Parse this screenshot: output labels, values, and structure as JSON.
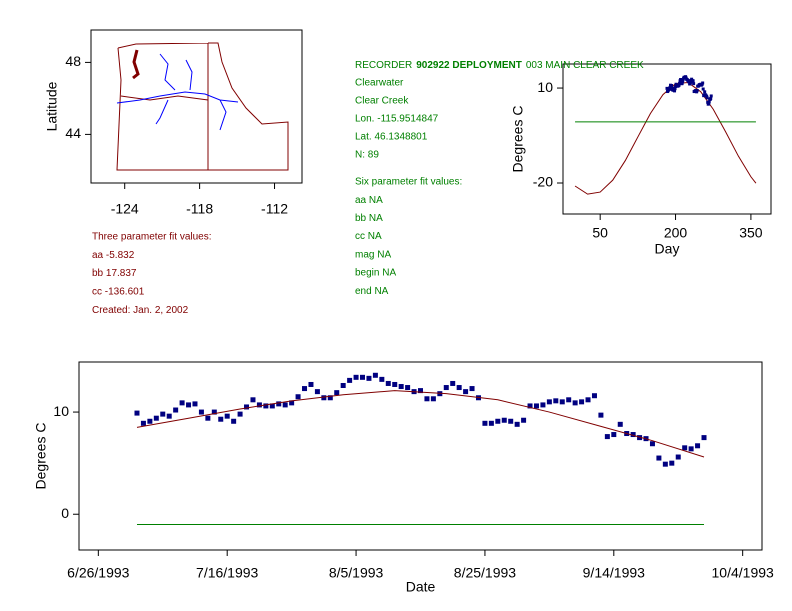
{
  "chart_data": [
    {
      "type": "map",
      "ylabel": "Latitude",
      "xlim": [
        -126.7,
        -109.8
      ],
      "ylim": [
        41.3,
        49.8
      ],
      "xticks": [
        -124,
        -118,
        -112
      ],
      "yticks": [
        44,
        48
      ]
    },
    {
      "type": "line",
      "xlabel": "Day",
      "ylabel": "Degrees C",
      "xlim": [
        -24,
        390
      ],
      "ylim": [
        -29.8,
        17.6
      ],
      "xticks": [
        50,
        200,
        350
      ],
      "yticks": [
        -20,
        10
      ],
      "series": [
        {
          "color": "#800000",
          "x": [
            0,
            25,
            50,
            75,
            100,
            125,
            150,
            175,
            200,
            225,
            250,
            275,
            300,
            325,
            350,
            360
          ],
          "values": [
            -20.95,
            -23.52,
            -22.87,
            -19.1,
            -12.92,
            -5.45,
            1.96,
            7.94,
            11.41,
            11.74,
            8.86,
            3.31,
            -3.92,
            -11.49,
            -18.03,
            -20.08
          ]
        },
        {
          "color": "#008000",
          "x": [
            0,
            360
          ],
          "values": [
            -0.7,
            -0.7
          ]
        }
      ]
    },
    {
      "type": "scatter",
      "xlabel": "Date",
      "ylabel": "Degrees C",
      "xlim": [
        "6/23/1993",
        "10/7/1993"
      ],
      "ylim": [
        -3.5,
        14.9
      ],
      "xticks": [
        "6/26/1993",
        "7/16/1993",
        "8/5/1993",
        "8/25/1993",
        "9/14/1993",
        "10/4/1993"
      ],
      "yticks": [
        0,
        10
      ],
      "series": [
        {
          "type": "scatter",
          "color": "#000080",
          "x": [
            "7/2/1993",
            "7/3/1993",
            "7/4/1993",
            "7/5/1993",
            "7/6/1993",
            "7/7/1993",
            "7/8/1993",
            "7/9/1993",
            "7/10/1993",
            "7/11/1993",
            "7/12/1993",
            "7/13/1993",
            "7/14/1993",
            "7/15/1993",
            "7/16/1993",
            "7/17/1993",
            "7/18/1993",
            "7/19/1993",
            "7/20/1993",
            "7/21/1993",
            "7/22/1993",
            "7/23/1993",
            "7/24/1993",
            "7/25/1993",
            "7/26/1993",
            "7/27/1993",
            "7/28/1993",
            "7/29/1993",
            "7/30/1993",
            "7/31/1993",
            "8/1/1993",
            "8/2/1993",
            "8/3/1993",
            "8/4/1993",
            "8/5/1993",
            "8/6/1993",
            "8/7/1993",
            "8/8/1993",
            "8/9/1993",
            "8/10/1993",
            "8/11/1993",
            "8/12/1993",
            "8/13/1993",
            "8/14/1993",
            "8/15/1993",
            "8/16/1993",
            "8/17/1993",
            "8/18/1993",
            "8/19/1993",
            "8/20/1993",
            "8/21/1993",
            "8/22/1993",
            "8/23/1993",
            "8/24/1993",
            "8/25/1993",
            "8/26/1993",
            "8/27/1993",
            "8/28/1993",
            "8/29/1993",
            "8/30/1993",
            "8/31/1993",
            "9/1/1993",
            "9/2/1993",
            "9/3/1993",
            "9/4/1993",
            "9/5/1993",
            "9/6/1993",
            "9/7/1993",
            "9/8/1993",
            "9/9/1993",
            "9/10/1993",
            "9/11/1993",
            "9/12/1993",
            "9/13/1993",
            "9/14/1993",
            "9/15/1993",
            "9/16/1993",
            "9/17/1993",
            "9/18/1993",
            "9/19/1993",
            "9/20/1993",
            "9/21/1993",
            "9/22/1993",
            "9/23/1993",
            "9/24/1993",
            "9/25/1993",
            "9/26/1993",
            "9/27/1993",
            "9/28/1993"
          ],
          "values": [
            9.9,
            8.9,
            9.1,
            9.4,
            9.8,
            9.6,
            10.2,
            10.9,
            10.7,
            10.8,
            10.0,
            9.4,
            10.0,
            9.3,
            9.6,
            9.1,
            9.8,
            10.5,
            11.2,
            10.7,
            10.6,
            10.6,
            10.8,
            10.7,
            10.9,
            11.5,
            12.3,
            12.7,
            12.0,
            11.4,
            11.4,
            11.9,
            12.6,
            13.1,
            13.4,
            13.4,
            13.3,
            13.6,
            13.2,
            12.8,
            12.7,
            12.5,
            12.4,
            12.0,
            12.1,
            11.3,
            11.3,
            11.8,
            12.4,
            12.8,
            12.4,
            12.0,
            12.3,
            11.4,
            8.9,
            8.9,
            9.1,
            9.2,
            9.1,
            8.8,
            9.2,
            10.6,
            10.6,
            10.7,
            11.0,
            11.1,
            11.0,
            11.2,
            10.9,
            11.0,
            11.2,
            11.6,
            9.7,
            7.6,
            7.8,
            8.8,
            7.9,
            7.8,
            7.5,
            7.4,
            6.9,
            5.5,
            4.9,
            5.0,
            5.6,
            6.5,
            6.4,
            6.7,
            7.5
          ]
        },
        {
          "type": "line",
          "color": "#800000",
          "x": [
            "7/2/1993",
            "7/10/1993",
            "7/18/1993",
            "7/26/1993",
            "8/3/1993",
            "8/11/1993",
            "8/19/1993",
            "8/27/1993",
            "9/4/1993",
            "9/12/1993",
            "9/20/1993",
            "9/28/1993"
          ],
          "values": [
            8.5,
            9.4,
            10.3,
            11.1,
            11.7,
            12.1,
            11.8,
            11.2,
            10.0,
            8.6,
            7.2,
            5.6
          ]
        },
        {
          "type": "line",
          "color": "#008000",
          "x": [
            "7/2/1993",
            "9/28/1993"
          ],
          "values": [
            -1,
            -1
          ]
        }
      ]
    }
  ],
  "three_param": [
    "Three parameter fit values:",
    "aa -5.832",
    "bb 17.837",
    "cc -136.601",
    "Created:   Jan. 2, 2002"
  ],
  "recorder": {
    "header": [
      "RECORDER",
      "902922 DEPLOYMENT",
      "003 MAIN CLEAR CREEK"
    ],
    "lines": [
      "Clearwater",
      "Clear Creek",
      "Lon. -115.9514847",
      "Lat. 46.1348801",
      "N: 89"
    ]
  },
  "six_param": [
    "Six parameter fit values:",
    "aa NA",
    "bb NA",
    "cc NA",
    "mag NA",
    "begin NA",
    "end NA"
  ]
}
